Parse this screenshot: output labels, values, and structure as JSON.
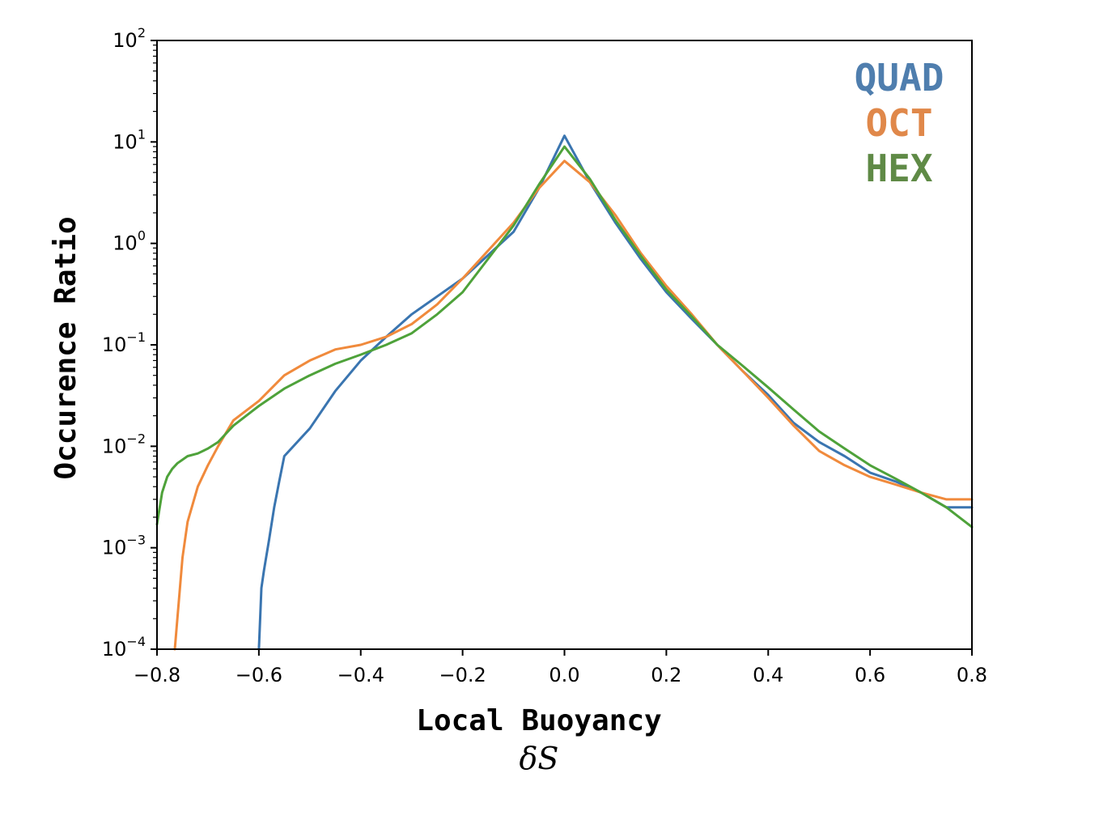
{
  "chart_data": {
    "type": "line",
    "title": "",
    "xlabel": "Local Buoyancy",
    "xlabel_symbol": "δS",
    "ylabel": "Occurence Ratio",
    "xlim": [
      -0.8,
      0.8
    ],
    "ylim": [
      0.0001,
      100
    ],
    "yscale": "log",
    "xticks": [
      "−0.8",
      "−0.6",
      "−0.4",
      "−0.2",
      "0.0",
      "0.2",
      "0.4",
      "0.6",
      "0.8"
    ],
    "yticks": [
      {
        "base": "10",
        "exp": "2"
      },
      {
        "base": "10",
        "exp": "1"
      },
      {
        "base": "10",
        "exp": "0"
      },
      {
        "base": "10",
        "exp": "−1"
      },
      {
        "base": "10",
        "exp": "−2"
      },
      {
        "base": "10",
        "exp": "−3"
      },
      {
        "base": "10",
        "exp": "−4"
      }
    ],
    "grid": false,
    "legend_position": "top-right",
    "series": [
      {
        "name": "QUAD",
        "color": "#3a75b0",
        "legend_color": "#4f7eae",
        "x": [
          -0.6,
          -0.595,
          -0.59,
          -0.58,
          -0.57,
          -0.56,
          -0.55,
          -0.5,
          -0.45,
          -0.4,
          -0.35,
          -0.3,
          -0.25,
          -0.2,
          -0.1,
          -0.05,
          0.0,
          0.05,
          0.1,
          0.15,
          0.2,
          0.25,
          0.3,
          0.35,
          0.4,
          0.45,
          0.5,
          0.55,
          0.6,
          0.65,
          0.7,
          0.75,
          0.8
        ],
        "y": [
          0.0001,
          0.0004,
          0.0006,
          0.0012,
          0.0025,
          0.0045,
          0.008,
          0.015,
          0.035,
          0.07,
          0.12,
          0.2,
          0.3,
          0.45,
          1.3,
          3.5,
          11.5,
          4.0,
          1.6,
          0.7,
          0.33,
          0.18,
          0.1,
          0.055,
          0.032,
          0.017,
          0.011,
          0.008,
          0.0055,
          0.0045,
          0.0035,
          0.0025,
          0.0025
        ]
      },
      {
        "name": "OCT",
        "color": "#f08a3c",
        "legend_color": "#e0884a",
        "x": [
          -0.765,
          -0.75,
          -0.74,
          -0.72,
          -0.7,
          -0.68,
          -0.65,
          -0.6,
          -0.55,
          -0.5,
          -0.45,
          -0.4,
          -0.35,
          -0.3,
          -0.25,
          -0.2,
          -0.1,
          -0.05,
          0.0,
          0.05,
          0.1,
          0.15,
          0.2,
          0.25,
          0.3,
          0.35,
          0.4,
          0.45,
          0.5,
          0.55,
          0.6,
          0.65,
          0.7,
          0.75,
          0.8
        ],
        "y": [
          0.0001,
          0.0008,
          0.0018,
          0.004,
          0.0065,
          0.01,
          0.018,
          0.028,
          0.05,
          0.07,
          0.09,
          0.1,
          0.12,
          0.16,
          0.25,
          0.45,
          1.6,
          3.5,
          6.5,
          4.0,
          1.9,
          0.8,
          0.38,
          0.2,
          0.1,
          0.055,
          0.03,
          0.016,
          0.009,
          0.0065,
          0.005,
          0.0042,
          0.0035,
          0.003,
          0.003
        ]
      },
      {
        "name": "HEX",
        "color": "#4ea23a",
        "legend_color": "#5f8a46",
        "x": [
          -0.8,
          -0.79,
          -0.78,
          -0.77,
          -0.76,
          -0.74,
          -0.72,
          -0.7,
          -0.68,
          -0.65,
          -0.6,
          -0.55,
          -0.5,
          -0.45,
          -0.4,
          -0.35,
          -0.3,
          -0.25,
          -0.2,
          -0.1,
          -0.05,
          0.0,
          0.05,
          0.1,
          0.15,
          0.2,
          0.25,
          0.3,
          0.35,
          0.4,
          0.45,
          0.5,
          0.55,
          0.6,
          0.65,
          0.7,
          0.75,
          0.8
        ],
        "y": [
          0.0017,
          0.0035,
          0.005,
          0.006,
          0.0068,
          0.008,
          0.0085,
          0.0095,
          0.011,
          0.016,
          0.025,
          0.037,
          0.05,
          0.065,
          0.08,
          0.1,
          0.13,
          0.2,
          0.33,
          1.5,
          3.8,
          9.0,
          4.3,
          1.7,
          0.75,
          0.35,
          0.19,
          0.1,
          0.062,
          0.038,
          0.023,
          0.014,
          0.0095,
          0.0065,
          0.0048,
          0.0035,
          0.0025,
          0.0016
        ]
      }
    ]
  }
}
